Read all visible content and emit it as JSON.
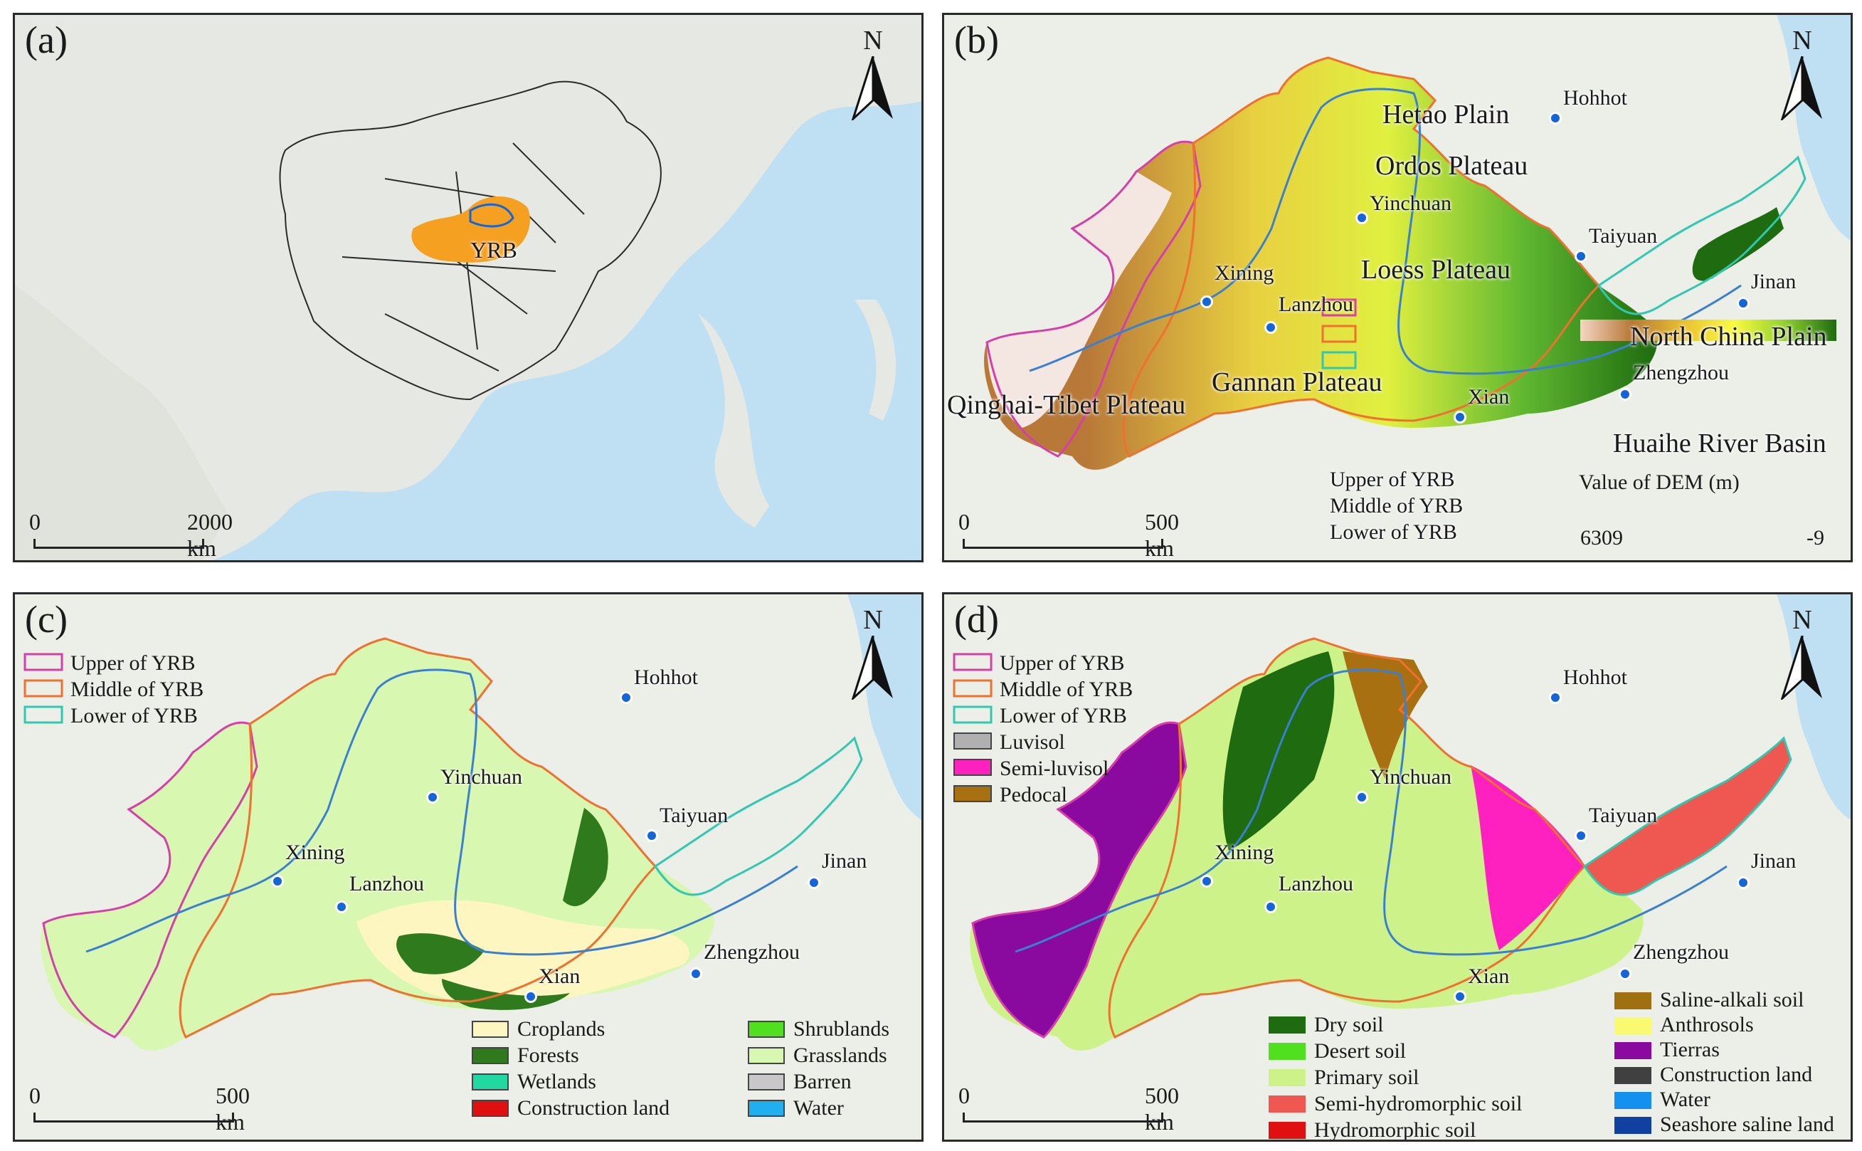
{
  "panels": {
    "a": {
      "label": "(a)",
      "basin_label": "YRB",
      "scale": {
        "start": "0",
        "end": "2000 km"
      }
    },
    "b": {
      "label": "(b)",
      "scale": {
        "start": "0",
        "end": "500 km"
      },
      "cities": [
        "Hohhot",
        "Yinchuan",
        "Taiyuan",
        "Xining",
        "Lanzhou",
        "Jinan",
        "Zhengzhou",
        "Xian"
      ],
      "regions": [
        "Hetao Plain",
        "Ordos Plateau",
        "Loess Plateau",
        "North China Plain",
        "Gannan Plateau",
        "Qinghai-Tibet Plateau",
        "Huaihe River Basin"
      ],
      "legend": [
        "Upper of YRB",
        "Middle of YRB",
        "Lower of YRB"
      ],
      "dem": {
        "title": "Value of DEM (m)",
        "max": "6309",
        "min": "-9"
      }
    },
    "c": {
      "label": "(c)",
      "scale": {
        "start": "0",
        "end": "500 km"
      },
      "cities": [
        "Hohhot",
        "Yinchuan",
        "Taiyuan",
        "Xining",
        "Lanzhou",
        "Jinan",
        "Zhengzhou",
        "Xian"
      ],
      "boundary_legend": [
        "Upper of YRB",
        "Middle of YRB",
        "Lower of YRB"
      ],
      "landuse_col1": [
        "Croplands",
        "Forests",
        "Wetlands",
        "Construction land"
      ],
      "landuse_col2": [
        "Shrublands",
        "Grasslands",
        "Barren",
        "Water"
      ]
    },
    "d": {
      "label": "(d)",
      "scale": {
        "start": "0",
        "end": "500 km"
      },
      "cities": [
        "Hohhot",
        "Yinchuan",
        "Taiyuan",
        "Xining",
        "Lanzhou",
        "Jinan",
        "Zhengzhou",
        "Xian"
      ],
      "boundary_legend": [
        "Upper of YRB",
        "Middle of YRB",
        "Lower of YRB",
        "Luvisol",
        "Semi-luvisol",
        "Pedocal"
      ],
      "soil_col1": [
        "Dry soil",
        "Desert soil",
        "Primary soil",
        "Semi-hydromorphic soil",
        "Hydromorphic soil"
      ],
      "soil_col2": [
        "Saline-alkali soil",
        "Anthrosols",
        "Tierras",
        "Construction land",
        "Water",
        "Seashore saline land"
      ]
    }
  },
  "north_letter": "N",
  "colors": {
    "upper": "#d63fa8",
    "middle": "#f07030",
    "lower": "#30c8b0",
    "croplands": "#fdf6c0",
    "forests": "#2e7a1c",
    "wetlands": "#20d8a0",
    "construction": "#e01010",
    "shrublands": "#50e020",
    "grasslands": "#d8f7b0",
    "barren": "#c8c8c8",
    "water": "#20b0f0",
    "luvisol": "#b0b0b0",
    "semi_luvisol": "#ff20c0",
    "pedocal": "#a87010",
    "dry_soil": "#1e6b10",
    "desert_soil": "#50e020",
    "primary_soil": "#cdf28a",
    "semi_hydromorphic": "#ee5850",
    "hydromorphic": "#e01010",
    "saline_alkali": "#a07010",
    "anthrosols": "#fafa70",
    "tierras": "#8a0aa0",
    "construction_soil": "#404040",
    "water_soil": "#1490f0",
    "seashore": "#1040a0"
  }
}
